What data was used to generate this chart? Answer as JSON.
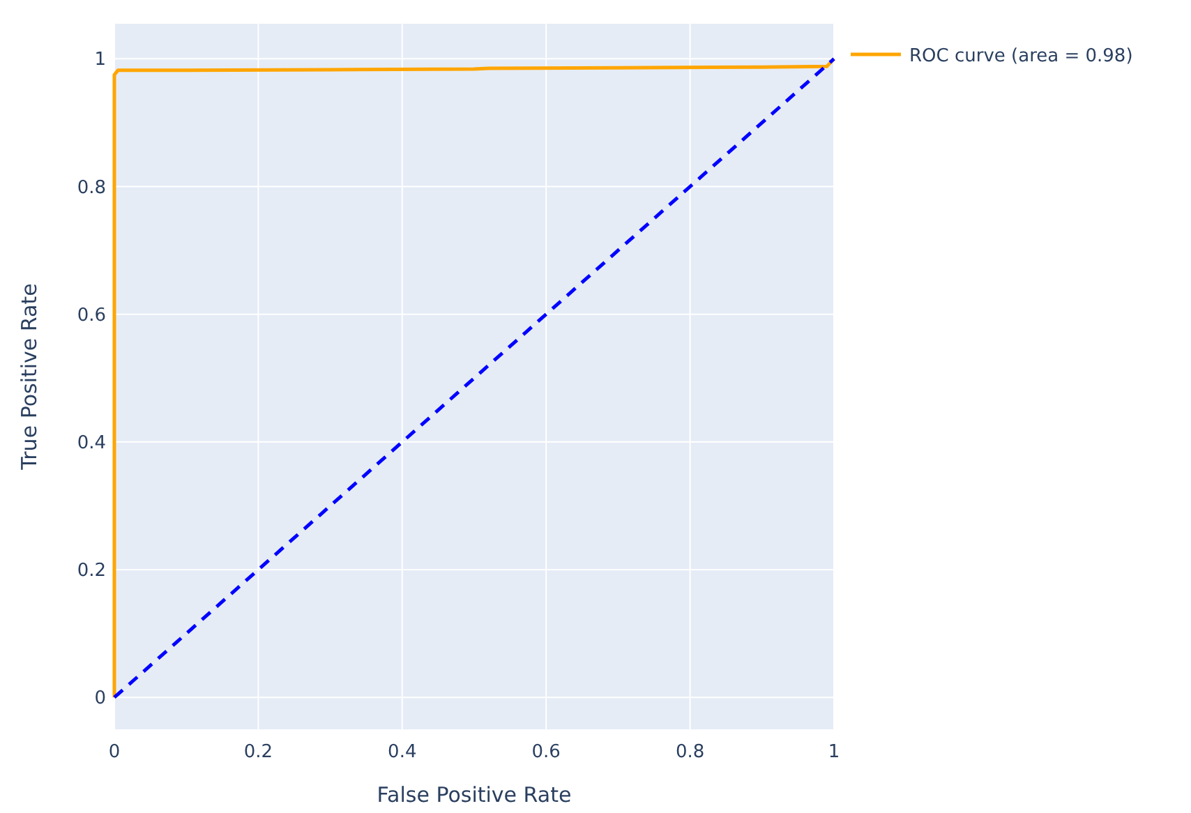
{
  "chart_data": {
    "type": "line",
    "xlabel": "False Positive Rate",
    "ylabel": "True Positive Rate",
    "xlim": [
      0,
      1
    ],
    "xticks": [
      0,
      0.2,
      0.4,
      0.6,
      0.8,
      1
    ],
    "ylim": [
      -0.05,
      1.055
    ],
    "yticks": [
      0,
      0.2,
      0.4,
      0.6,
      0.8,
      1
    ],
    "grid": true,
    "legend": "top right",
    "series": [
      {
        "name": "ROC curve (area = 0.98)",
        "color": "#ffa500",
        "x": [
          0,
          0,
          0.005,
          0.1,
          0.3,
          0.5,
          0.52,
          0.7,
          0.9,
          0.99,
          1
        ],
        "values": [
          0,
          0.975,
          0.982,
          0.982,
          0.983,
          0.984,
          0.985,
          0.986,
          0.987,
          0.988,
          1
        ]
      },
      {
        "color": "#0000ff",
        "line_style": "dashed",
        "x": [
          0,
          1
        ],
        "values": [
          0,
          1
        ]
      }
    ]
  }
}
